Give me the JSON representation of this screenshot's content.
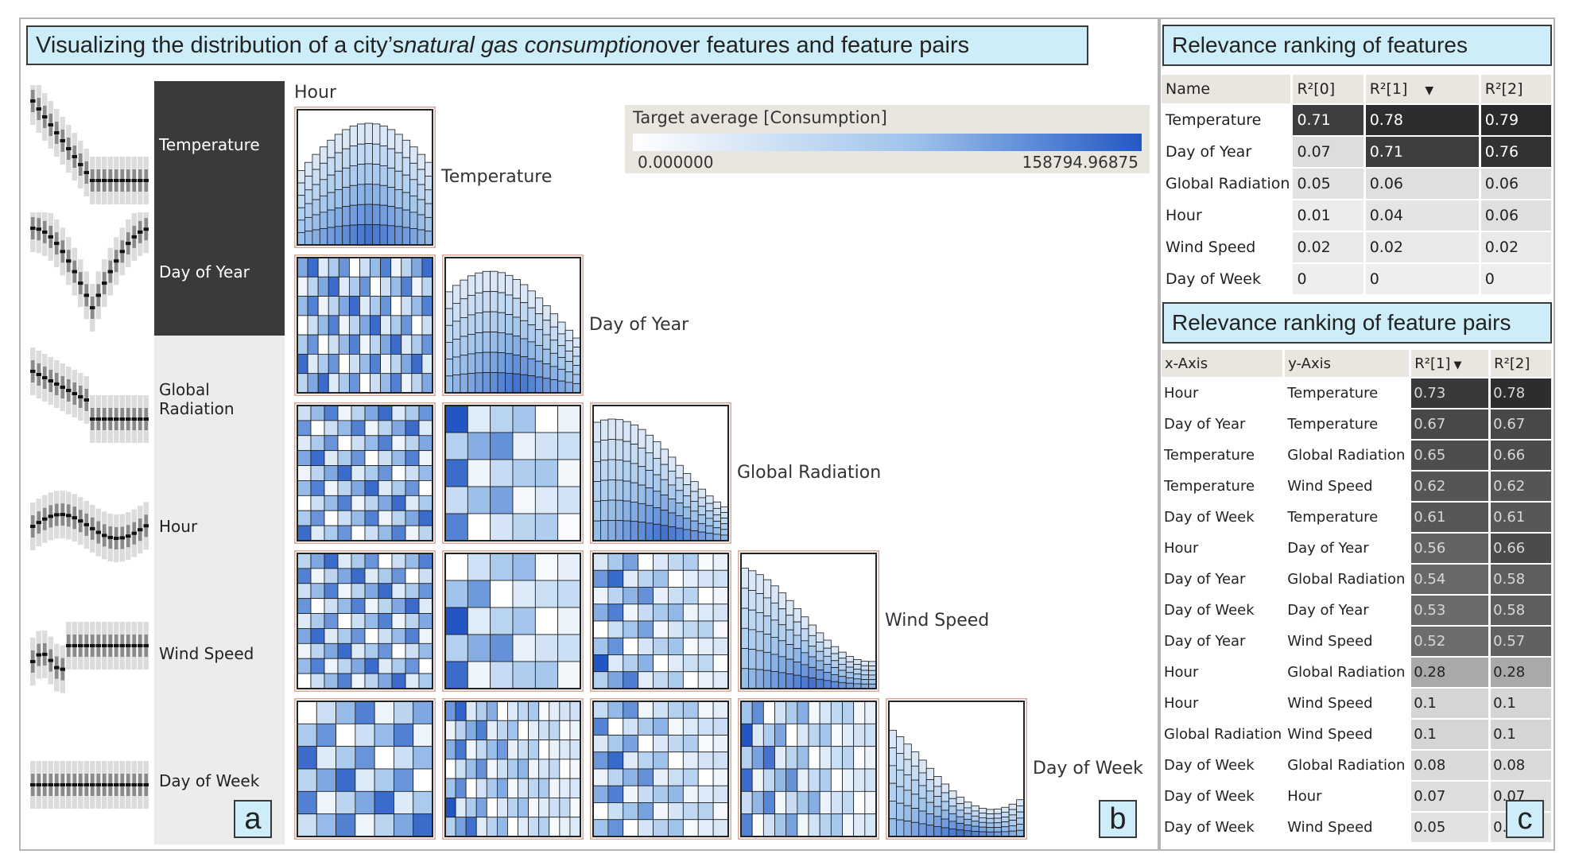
{
  "title": {
    "pre": "Visualizing the distribution of a city’s ",
    "em": "natural gas consumption",
    "post": " over features and feature pairs"
  },
  "panel_letters": {
    "a": "a",
    "b": "b",
    "c": "c"
  },
  "features": [
    {
      "label": "Temperature",
      "level": "dark"
    },
    {
      "label": "Day of Year",
      "level": "dark"
    },
    {
      "label": "Global Radiation",
      "level": "light"
    },
    {
      "label": "Hour",
      "level": "light"
    },
    {
      "label": "Wind Speed",
      "level": "light"
    },
    {
      "label": "Day of Week",
      "level": "light"
    }
  ],
  "matrix": {
    "top_label": "Hour",
    "diagonal_labels": [
      "Temperature",
      "Day of Year",
      "Global Radiation",
      "Wind Speed",
      "Day of Week"
    ]
  },
  "legend": {
    "title": "Target average [Consumption]",
    "min": "0.000000",
    "max": "158794.96875"
  },
  "features_table": {
    "title": "Relevance ranking of features",
    "columns": [
      "Name",
      "R²[0]",
      "R²[1]",
      "R²[2]"
    ],
    "sort_icon": "sort-down-icon",
    "rows": [
      {
        "name": "Temperature",
        "v": [
          "0.71",
          "0.78",
          "0.79"
        ],
        "shade": [
          0.71,
          0.78,
          0.79
        ]
      },
      {
        "name": "Day of Year",
        "v": [
          "0.07",
          "0.71",
          "0.76"
        ],
        "shade": [
          0.07,
          0.71,
          0.76
        ]
      },
      {
        "name": "Global Radiation",
        "v": [
          "0.05",
          "0.06",
          "0.06"
        ],
        "shade": [
          0.05,
          0.06,
          0.06
        ]
      },
      {
        "name": "Hour",
        "v": [
          "0.01",
          "0.04",
          "0.06"
        ],
        "shade": [
          0.01,
          0.04,
          0.06
        ]
      },
      {
        "name": "Wind Speed",
        "v": [
          "0.02",
          "0.02",
          "0.02"
        ],
        "shade": [
          0.02,
          0.02,
          0.02
        ]
      },
      {
        "name": "Day of Week",
        "v": [
          "0",
          "0",
          "0"
        ],
        "shade": [
          0,
          0,
          0
        ]
      }
    ]
  },
  "pairs_table": {
    "title": "Relevance ranking of feature pairs",
    "columns": [
      "x-Axis",
      "y-Axis",
      "R²[1]",
      "R²[2]"
    ],
    "sort_icon": "sort-down-icon",
    "rows": [
      {
        "x": "Hour",
        "y": "Temperature",
        "r1": "0.73",
        "r2": "0.78",
        "s1": 0.73,
        "s2": 0.78
      },
      {
        "x": "Day of Year",
        "y": "Temperature",
        "r1": "0.67",
        "r2": "0.67",
        "s1": 0.67,
        "s2": 0.67
      },
      {
        "x": "Temperature",
        "y": "Global Radiation",
        "r1": "0.65",
        "r2": "0.66",
        "s1": 0.65,
        "s2": 0.66
      },
      {
        "x": "Temperature",
        "y": "Wind Speed",
        "r1": "0.62",
        "r2": "0.62",
        "s1": 0.62,
        "s2": 0.62
      },
      {
        "x": "Day of Week",
        "y": "Temperature",
        "r1": "0.61",
        "r2": "0.61",
        "s1": 0.61,
        "s2": 0.61
      },
      {
        "x": "Hour",
        "y": "Day of Year",
        "r1": "0.56",
        "r2": "0.66",
        "s1": 0.56,
        "s2": 0.66
      },
      {
        "x": "Day of Year",
        "y": "Global Radiation",
        "r1": "0.54",
        "r2": "0.58",
        "s1": 0.54,
        "s2": 0.58
      },
      {
        "x": "Day of Week",
        "y": "Day of Year",
        "r1": "0.53",
        "r2": "0.58",
        "s1": 0.53,
        "s2": 0.58
      },
      {
        "x": "Day of Year",
        "y": "Wind Speed",
        "r1": "0.52",
        "r2": "0.57",
        "s1": 0.52,
        "s2": 0.57
      },
      {
        "x": "Hour",
        "y": "Global Radiation",
        "r1": "0.28",
        "r2": "0.28",
        "s1": 0.28,
        "s2": 0.28
      },
      {
        "x": "Hour",
        "y": "Wind Speed",
        "r1": "0.1",
        "r2": "0.1",
        "s1": 0.1,
        "s2": 0.1
      },
      {
        "x": "Global Radiation",
        "y": "Wind Speed",
        "r1": "0.1",
        "r2": "0.1",
        "s1": 0.1,
        "s2": 0.1
      },
      {
        "x": "Day of Week",
        "y": "Global Radiation",
        "r1": "0.08",
        "r2": "0.08",
        "s1": 0.08,
        "s2": 0.08
      },
      {
        "x": "Day of Week",
        "y": "Hour",
        "r1": "0.07",
        "r2": "0.07",
        "s1": 0.07,
        "s2": 0.07
      },
      {
        "x": "Day of Week",
        "y": "Wind Speed",
        "r1": "0.05",
        "r2": "0.05",
        "s1": 0.05,
        "s2": 0.05
      }
    ]
  },
  "colors": {
    "dark": "#3a3a3c",
    "light": "#ececec",
    "blue_dark": "#2358c4",
    "title_bg": "#cdeef9"
  }
}
